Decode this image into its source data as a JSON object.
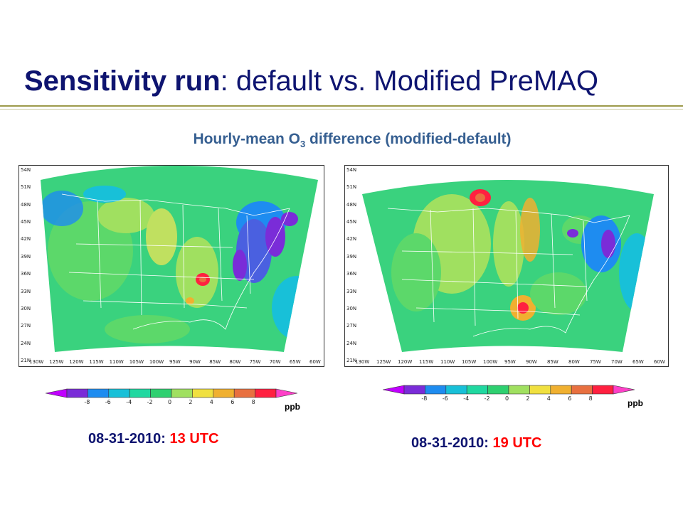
{
  "title": {
    "bold": "Sensitivity run",
    "rest": ": default vs. Modified PreMAQ"
  },
  "subtitle": {
    "pre": "Hourly-mean O",
    "sub": "3",
    "post": " difference (modified-default)"
  },
  "lat_labels": [
    "54N",
    "51N",
    "48N",
    "45N",
    "42N",
    "39N",
    "36N",
    "33N",
    "30N",
    "27N",
    "24N",
    "21N"
  ],
  "lon_labels": [
    "130W",
    "125W",
    "120W",
    "115W",
    "110W",
    "105W",
    "100W",
    "95W",
    "90W",
    "85W",
    "80W",
    "75W",
    "70W",
    "65W",
    "60W"
  ],
  "colorbar": {
    "ticks": [
      "-8",
      "-6",
      "-4",
      "-2",
      "0",
      "2",
      "4",
      "6",
      "8"
    ],
    "colors": [
      "#c000ff",
      "#7a2cd8",
      "#1e8cf0",
      "#18c0d8",
      "#20d8a0",
      "#2ed070",
      "#a0e060",
      "#f0e040",
      "#f0b030",
      "#e87040",
      "#ff2040",
      "#ff40c8"
    ],
    "unit": "ppb"
  },
  "panels": [
    {
      "date": "08-31-2010:",
      "time": "13 UTC"
    },
    {
      "date": "08-31-2010:",
      "time": "19 UTC"
    }
  ]
}
